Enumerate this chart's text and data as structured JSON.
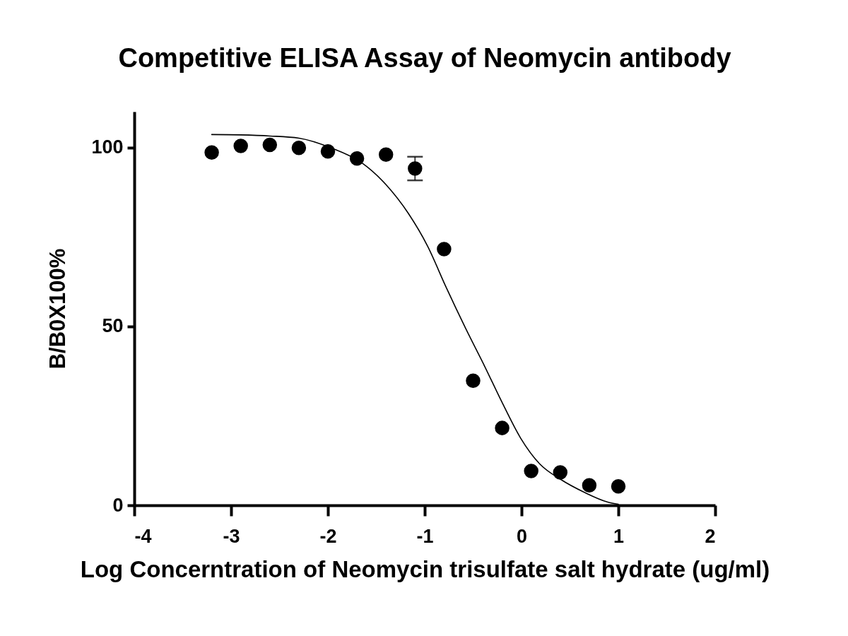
{
  "chart_data": {
    "type": "scatter",
    "title": "Competitive ELISA Assay of Neomycin antibody",
    "xlabel": "Log Concerntration of Neomycin trisulfate salt hydrate (ug/ml)",
    "ylabel": "B/B0X100%",
    "xlim": [
      -4,
      2
    ],
    "xticks": [
      -4,
      -3,
      -2,
      -1,
      0,
      1,
      2
    ],
    "ylim": [
      0,
      110
    ],
    "yticks": [
      0,
      50,
      100
    ],
    "series": [
      {
        "type": "line",
        "color": "#000000",
        "marker": "none",
        "line_style": "solid",
        "x": [
          -3.2,
          -2.9,
          -2.6,
          -2.3,
          -1.96,
          -1.65,
          -1.4,
          -1.17,
          -0.97,
          -0.78,
          -0.58,
          -0.38,
          -0.2,
          -0.01,
          0.19,
          0.4,
          0.65,
          0.89,
          1.0
        ],
        "values": [
          103.6,
          103.5,
          103.2,
          102.6,
          99.8,
          95.7,
          89.6,
          81.6,
          72.4,
          61.0,
          49.6,
          38.8,
          28.7,
          18.8,
          11.5,
          7.3,
          3.6,
          0.9,
          0.3
        ]
      },
      {
        "color": "#000000",
        "marker": "circle",
        "x": [
          -3.2,
          -2.9,
          -2.6,
          -2.3,
          -2.0,
          -1.7,
          -1.4,
          -1.1,
          -0.8,
          -0.5,
          -0.2,
          0.1,
          0.4,
          0.7,
          1.0
        ],
        "values": [
          98.6,
          100.4,
          100.7,
          99.9,
          98.9,
          96.9,
          98.0,
          94.1,
          71.6,
          34.8,
          21.6,
          9.6,
          9.2,
          5.6,
          5.3
        ],
        "errors": [
          null,
          null,
          null,
          null,
          null,
          null,
          null,
          [
            90.8,
            97.4
          ],
          null,
          null,
          null,
          null,
          null,
          null,
          null
        ]
      }
    ]
  }
}
